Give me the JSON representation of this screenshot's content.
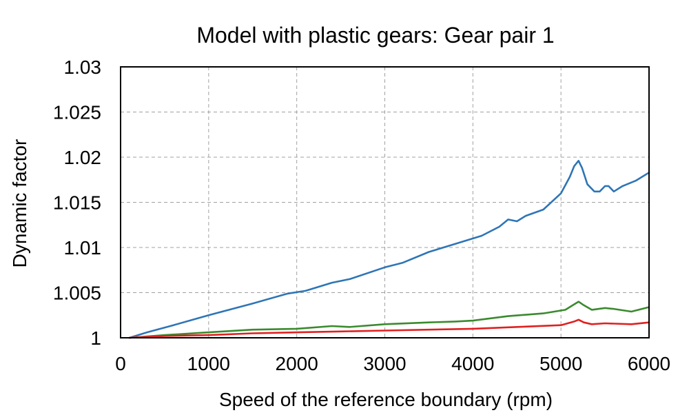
{
  "chart_data": {
    "type": "line",
    "title": "Model with plastic gears: Gear pair 1",
    "xlabel": "Speed of the reference boundary (rpm)",
    "ylabel": "Dynamic factor",
    "xlim": [
      0,
      6000
    ],
    "ylim": [
      1,
      1.03
    ],
    "x_ticks": [
      "0",
      "1000",
      "2000",
      "3000",
      "4000",
      "5000",
      "6000"
    ],
    "y_ticks": [
      "1",
      "1.005",
      "1.01",
      "1.015",
      "1.02",
      "1.025",
      "1.03"
    ],
    "grid": true,
    "series": [
      {
        "color": "#2e75b6",
        "points": [
          [
            100,
            1.0
          ],
          [
            300,
            1.0006
          ],
          [
            600,
            1.0014
          ],
          [
            1000,
            1.0025
          ],
          [
            1500,
            1.0038
          ],
          [
            1900,
            1.0049
          ],
          [
            2100,
            1.0052
          ],
          [
            2400,
            1.0061
          ],
          [
            2600,
            1.0065
          ],
          [
            3000,
            1.0078
          ],
          [
            3200,
            1.0083
          ],
          [
            3500,
            1.0095
          ],
          [
            3800,
            1.0104
          ],
          [
            4100,
            1.0113
          ],
          [
            4300,
            1.0123
          ],
          [
            4400,
            1.0131
          ],
          [
            4500,
            1.0129
          ],
          [
            4600,
            1.0135
          ],
          [
            4800,
            1.0142
          ],
          [
            5000,
            1.016
          ],
          [
            5100,
            1.0178
          ],
          [
            5150,
            1.019
          ],
          [
            5200,
            1.0196
          ],
          [
            5240,
            1.0188
          ],
          [
            5300,
            1.017
          ],
          [
            5380,
            1.0162
          ],
          [
            5440,
            1.0162
          ],
          [
            5500,
            1.0168
          ],
          [
            5540,
            1.0168
          ],
          [
            5600,
            1.0162
          ],
          [
            5700,
            1.0168
          ],
          [
            5850,
            1.0174
          ],
          [
            6000,
            1.0183
          ]
        ]
      },
      {
        "color": "#3a8a2e",
        "points": [
          [
            100,
            1.0
          ],
          [
            500,
            1.0003
          ],
          [
            1000,
            1.0006
          ],
          [
            1500,
            1.0009
          ],
          [
            2000,
            1.001
          ],
          [
            2400,
            1.0013
          ],
          [
            2600,
            1.0012
          ],
          [
            3000,
            1.0015
          ],
          [
            3500,
            1.0017
          ],
          [
            3800,
            1.0018
          ],
          [
            4000,
            1.0019
          ],
          [
            4400,
            1.0024
          ],
          [
            4800,
            1.0027
          ],
          [
            5050,
            1.0031
          ],
          [
            5150,
            1.0037
          ],
          [
            5200,
            1.004
          ],
          [
            5260,
            1.0036
          ],
          [
            5350,
            1.0031
          ],
          [
            5500,
            1.0033
          ],
          [
            5600,
            1.0032
          ],
          [
            5800,
            1.0029
          ],
          [
            6000,
            1.0034
          ]
        ]
      },
      {
        "color": "#e02020",
        "points": [
          [
            100,
            1.0
          ],
          [
            500,
            1.0002
          ],
          [
            1000,
            1.0003
          ],
          [
            1500,
            1.0005
          ],
          [
            2000,
            1.0006
          ],
          [
            2500,
            1.0007
          ],
          [
            3000,
            1.0008
          ],
          [
            3500,
            1.0009
          ],
          [
            4000,
            1.001
          ],
          [
            4500,
            1.0012
          ],
          [
            5000,
            1.0014
          ],
          [
            5150,
            1.0018
          ],
          [
            5200,
            1.002
          ],
          [
            5260,
            1.0017
          ],
          [
            5350,
            1.0015
          ],
          [
            5500,
            1.0016
          ],
          [
            5800,
            1.0015
          ],
          [
            6000,
            1.0017
          ]
        ]
      }
    ]
  }
}
